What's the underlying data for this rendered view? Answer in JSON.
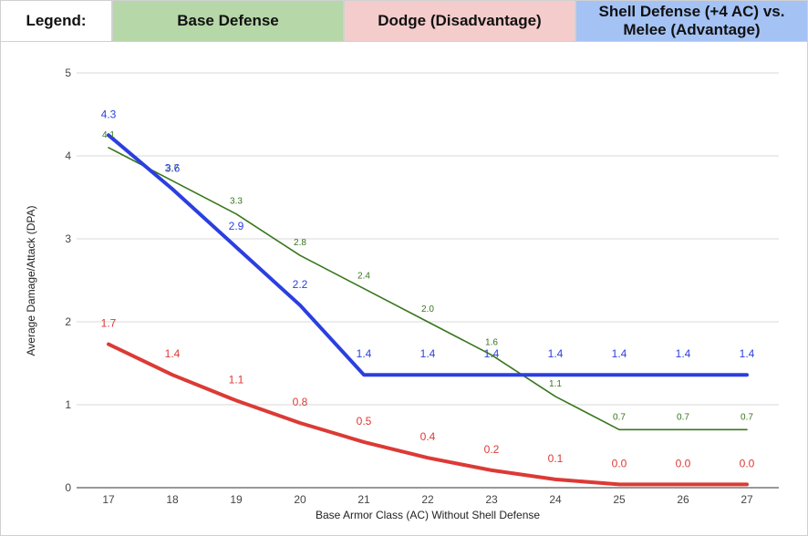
{
  "legend": {
    "title": "Legend:",
    "items": [
      {
        "label": "Base Defense",
        "bg": "#b6d7a8"
      },
      {
        "label": "Dodge (Disadvantage)",
        "bg": "#f4cccc"
      },
      {
        "label_line1": "Shell Defense (+4 AC) vs.",
        "label_line2": "Melee (Advantage)",
        "bg": "#a4c2f4"
      }
    ]
  },
  "chart_data": {
    "type": "line",
    "title": "",
    "xlabel": "Base Armor Class (AC) Without Shell Defense",
    "ylabel": "Average Damage/Attack (DPA)",
    "x": [
      17,
      18,
      19,
      20,
      21,
      22,
      23,
      24,
      25,
      26,
      27
    ],
    "ylim": [
      0,
      5
    ],
    "yticks": [
      0,
      1,
      2,
      3,
      4,
      5
    ],
    "grid": true,
    "series": [
      {
        "name": "Base Defense",
        "color": "#38761d",
        "values": [
          4.1,
          3.7,
          3.3,
          2.8,
          2.4,
          2.0,
          1.6,
          1.1,
          0.7,
          0.7,
          0.7
        ],
        "labels": [
          "4.1",
          "3.7",
          "3.3",
          "2.8",
          "2.4",
          "2.0",
          "1.6",
          "1.1",
          "0.7",
          "0.7",
          "0.7"
        ]
      },
      {
        "name": "Dodge (Disadvantage)",
        "color": "#dc3a35",
        "values": [
          1.73,
          1.36,
          1.05,
          0.78,
          0.55,
          0.36,
          0.21,
          0.1,
          0.04,
          0.04,
          0.04
        ],
        "labels": [
          "1.7",
          "1.4",
          "1.1",
          "0.8",
          "0.5",
          "0.4",
          "0.2",
          "0.1",
          "0.0",
          "0.0",
          "0.0"
        ]
      },
      {
        "name": "Shell Defense (+4 AC) vs. Melee (Advantage)",
        "color": "#2b3fe0",
        "values": [
          4.25,
          3.6,
          2.9,
          2.2,
          1.36,
          1.36,
          1.36,
          1.36,
          1.36,
          1.36,
          1.36
        ],
        "labels": [
          "4.3",
          "3.6",
          "2.9",
          "2.2",
          "1.4",
          "1.4",
          "1.4",
          "1.4",
          "1.4",
          "1.4",
          "1.4"
        ]
      }
    ]
  }
}
